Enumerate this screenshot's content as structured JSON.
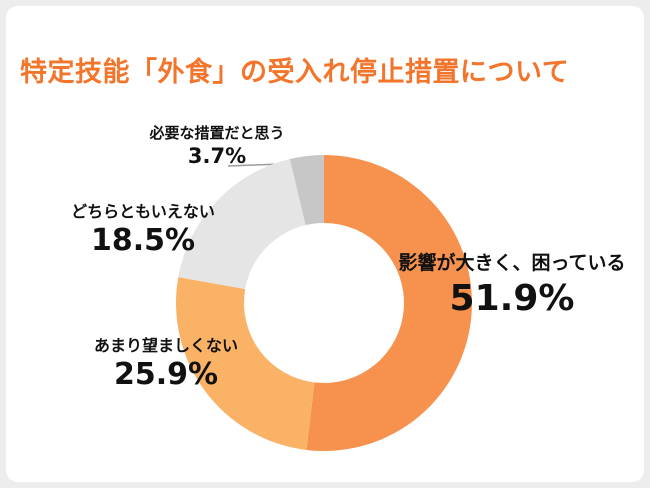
{
  "page": {
    "title": "特定技能「外食」の受入れ停止措置について"
  },
  "chart_data": {
    "type": "pie",
    "variant": "donut",
    "title": "特定技能「外食」の受入れ停止措置について",
    "categories": [
      "影響が大きく、困っている",
      "あまり望ましくない",
      "どちらともいえない",
      "必要な措置だと思う"
    ],
    "values": [
      51.9,
      25.9,
      18.5,
      3.7
    ],
    "display_values": [
      "51.9%",
      "25.9%",
      "18.5%",
      "3.7%"
    ],
    "unit": "%",
    "colors": [
      "#F6924E",
      "#FAB366",
      "#E5E5E5",
      "#C7C7C7"
    ],
    "start_angle_deg": -90,
    "direction": "clockwise",
    "inner_radius_ratio": 0.54,
    "legend_position": "labels-around-donut",
    "callout": {
      "for": "必要な措置だと思う",
      "style": "leader-line"
    }
  },
  "style": {
    "title_color": "#F3752C",
    "label_color": "#111111",
    "leader_line_color": "#9B9B9B",
    "background": "#EDEDED",
    "card_background": "#FFFFFF"
  }
}
